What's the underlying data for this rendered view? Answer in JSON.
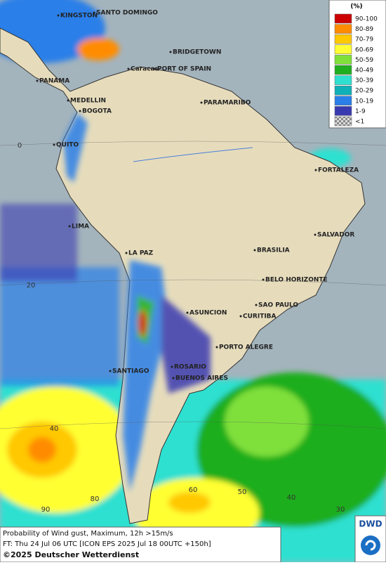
{
  "cities": [
    "KINGSTON",
    "SANTO DOMINGO",
    "BRIDGETOWN",
    "PORT OF SPAIN",
    "Caracas",
    "PANAMA",
    "MEDELLIN",
    "BOGOTA",
    "PARAMARIBO",
    "QUITO",
    "FORTALEZA",
    "LIMA",
    "SALVADOR",
    "LA PAZ",
    "BRASILIA",
    "BELO HORIZONTE",
    "ASUNCION",
    "SAO PAULO",
    "CURITIBA",
    "PORTO ALEGRE",
    "ROSARIO",
    "SANTIAGO",
    "BUENOS AIRES"
  ],
  "lat_labels": [
    "0",
    "20",
    "40"
  ],
  "lon_labels": [
    "90",
    "80",
    "60",
    "50",
    "40",
    "30"
  ],
  "legend": {
    "title": "(%)",
    "items": [
      {
        "label": "90-100",
        "color": "#cc0000"
      },
      {
        "label": "80-89",
        "color": "#ff8c00"
      },
      {
        "label": "70-79",
        "color": "#ffc800"
      },
      {
        "label": "60-69",
        "color": "#ffff33"
      },
      {
        "label": "50-59",
        "color": "#7fe03a"
      },
      {
        "label": "40-49",
        "color": "#1fae1f"
      },
      {
        "label": "30-39",
        "color": "#2fe0d0"
      },
      {
        "label": "20-29",
        "color": "#10b0b8"
      },
      {
        "label": "10-19",
        "color": "#2a7fe8"
      },
      {
        "label": "1-9",
        "color": "#3a3ab0"
      },
      {
        "label": "<1",
        "color": "#999999"
      }
    ]
  },
  "footer": {
    "line1": "Probability of Wind gust, Maximum, 12h >15m/s",
    "line2": "FT: Thu 24 Jul 06 UTC [ICON EPS 2025 Jul 18 00UTC +150h]",
    "line3": "©2025 Deutscher Wetterdienst"
  },
  "logo": "DWD"
}
